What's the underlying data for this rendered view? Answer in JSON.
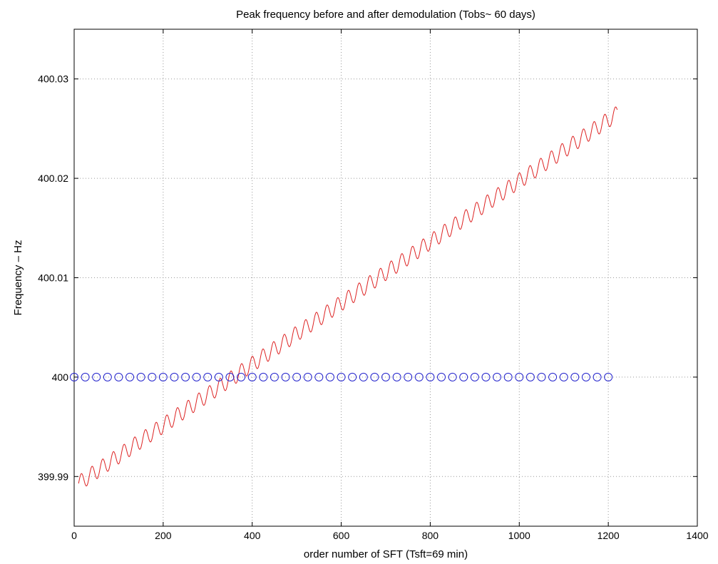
{
  "chart_data": {
    "type": "line",
    "title": "Peak frequency before and after demodulation (Tobs~ 60 days)",
    "xlabel": "order number of SFT (Tsft=69 min)",
    "ylabel": "Frequency – Hz",
    "xlim": [
      0,
      1400
    ],
    "ylim": [
      399.985,
      400.035
    ],
    "xticks": [
      0,
      200,
      400,
      600,
      800,
      1000,
      1200,
      1400
    ],
    "xtick_labels": [
      "0",
      "200",
      "400",
      "600",
      "800",
      "1000",
      "1200",
      "1400"
    ],
    "yticks": [
      399.99,
      400,
      400.01,
      400.02,
      400.03
    ],
    "ytick_labels": [
      "399.99",
      "400",
      "400.01",
      "400.02",
      "400.03"
    ],
    "grid": true,
    "series": [
      {
        "style": "line",
        "color": "#dd2222",
        "x_start": 10,
        "x_end": 1220,
        "y_start": 399.9893,
        "y_end": 400.0265,
        "oscillation_period": 24,
        "oscillation_amplitude": 0.0008
      },
      {
        "style": "circle-markers",
        "color": "#2222cc",
        "x_start": 0,
        "x_end": 1200,
        "x_step": 25,
        "y": 400.0
      }
    ]
  }
}
